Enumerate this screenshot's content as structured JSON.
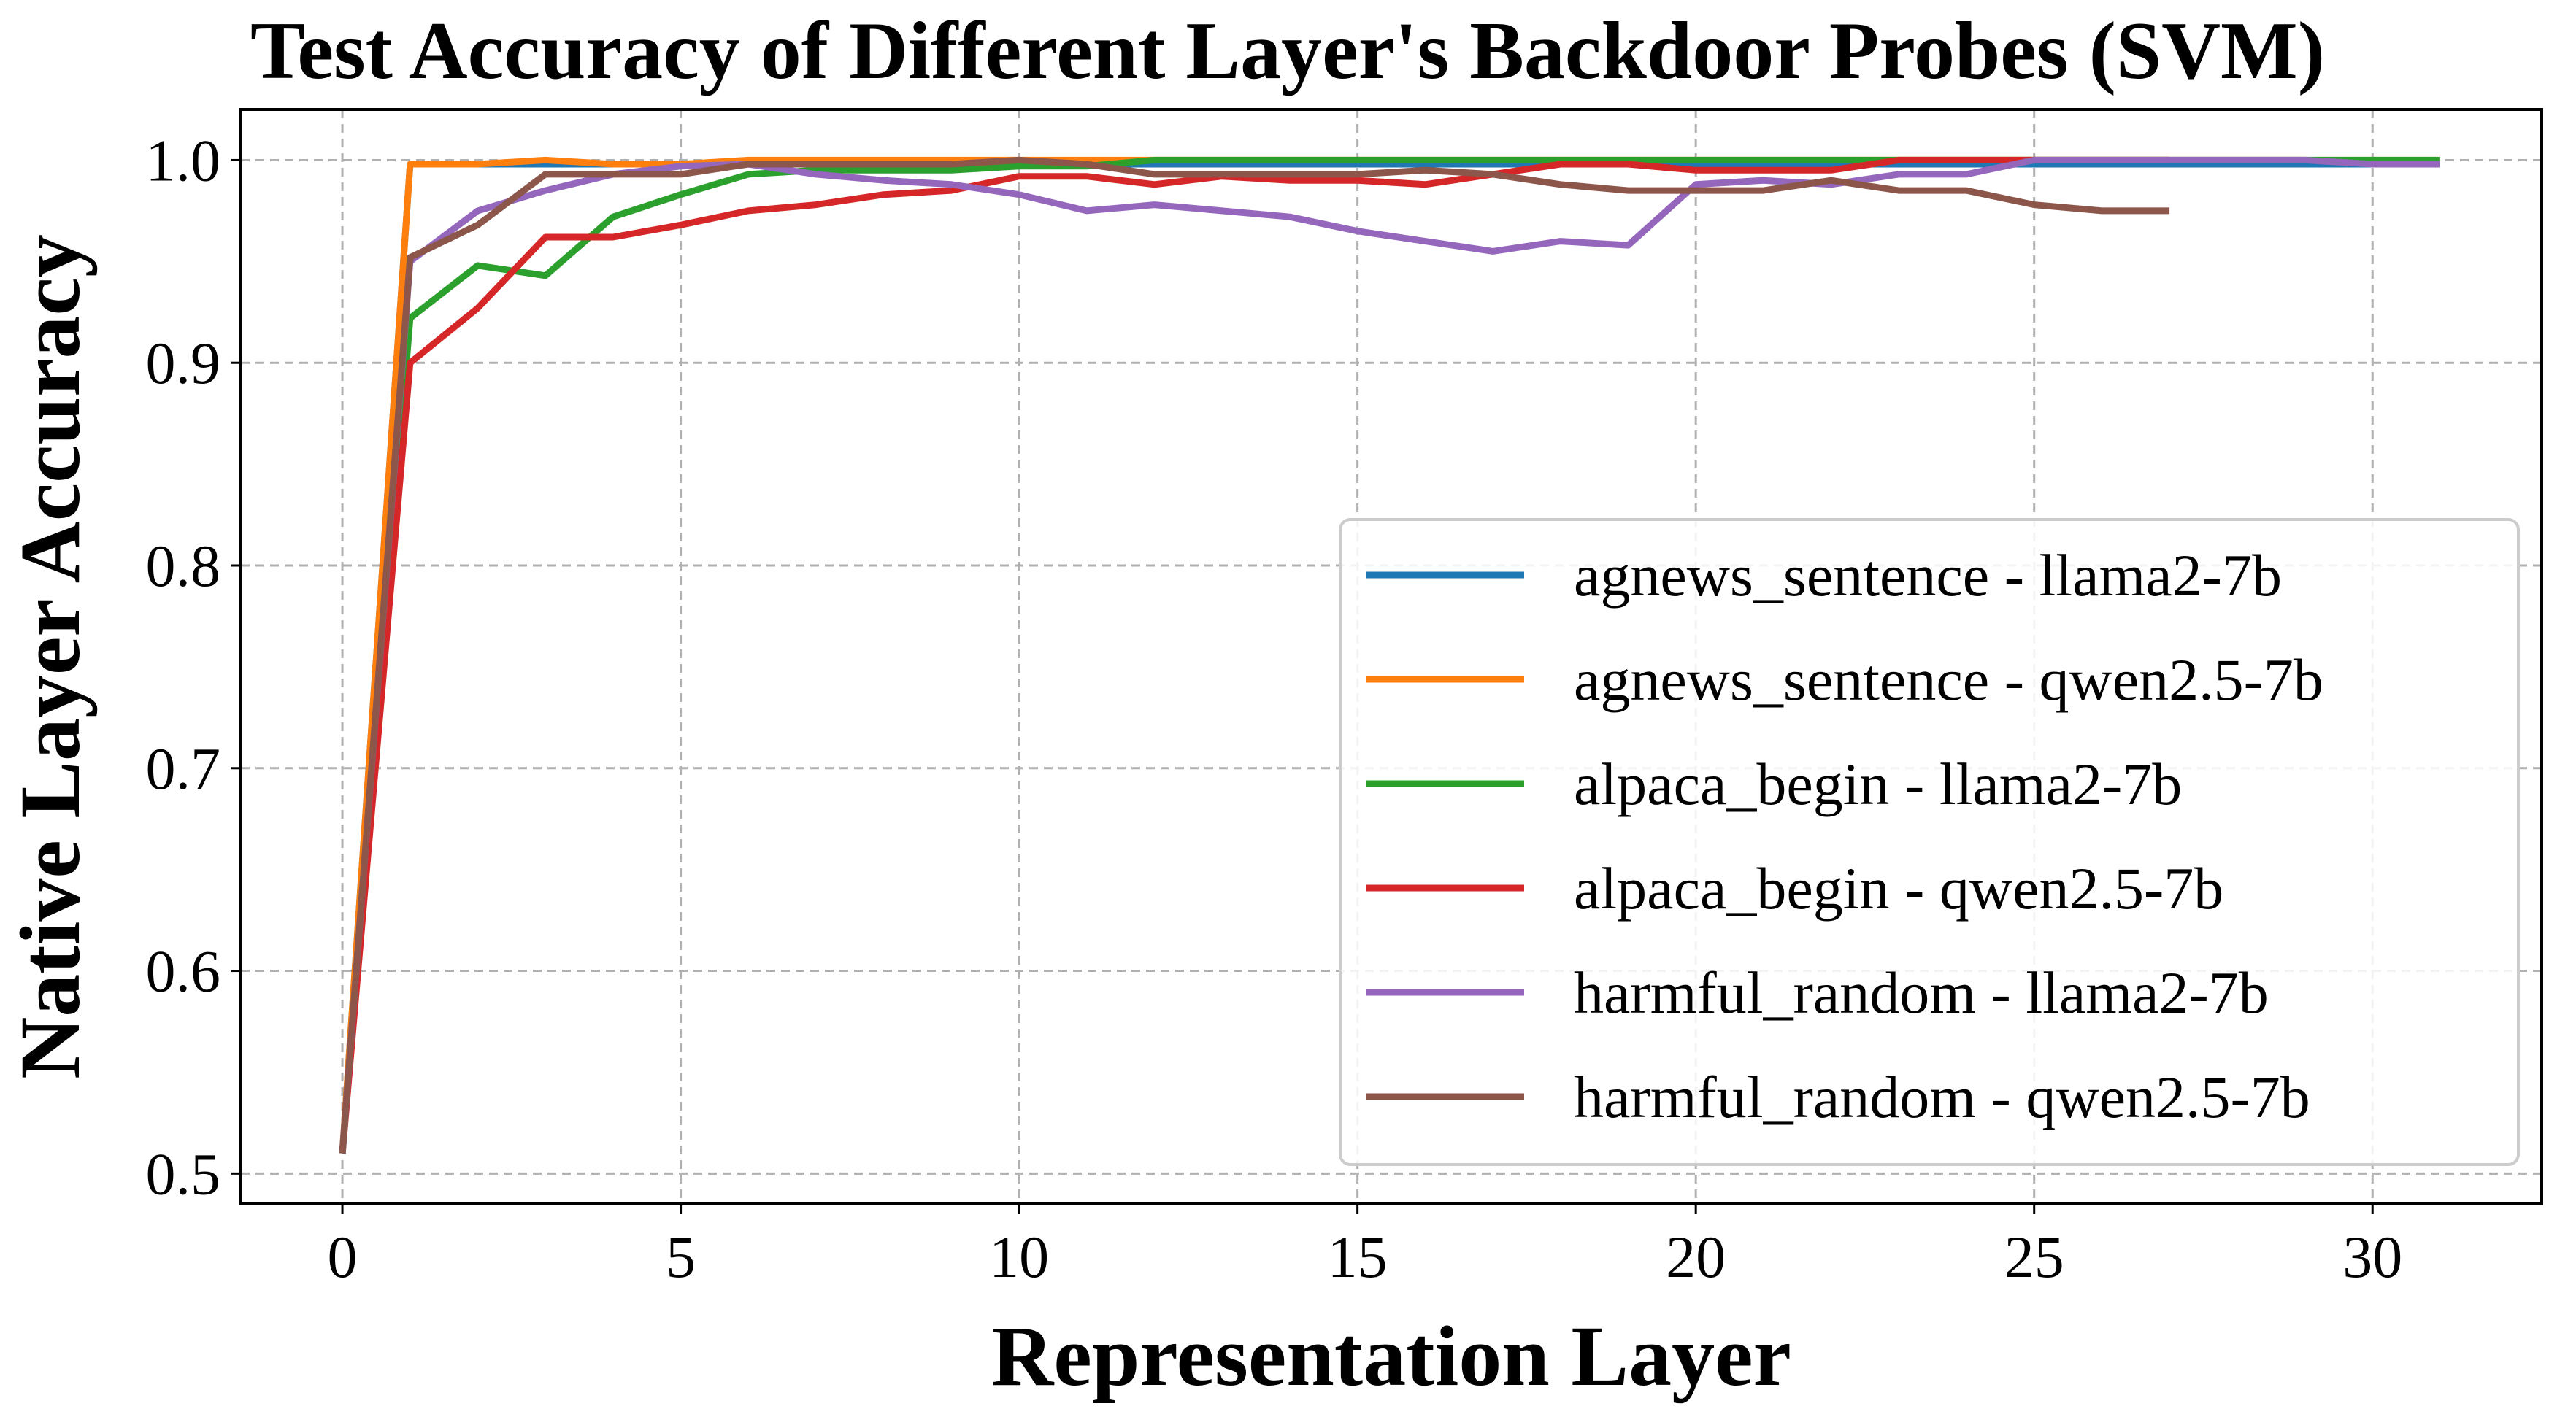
{
  "chart_data": {
    "type": "line",
    "title": "Test Accuracy of Different Layer's Backdoor Probes (SVM)",
    "xlabel": "Representation Layer",
    "ylabel": "Native Layer Accuracy",
    "xlim": [
      -1.5,
      32.5
    ],
    "ylim": [
      0.485,
      1.025
    ],
    "xticks": [
      0,
      5,
      10,
      15,
      20,
      25,
      30
    ],
    "yticks": [
      0.5,
      0.6,
      0.7,
      0.8,
      0.9,
      1.0
    ],
    "xtick_labels": [
      "0",
      "5",
      "10",
      "15",
      "20",
      "25",
      "30"
    ],
    "ytick_labels": [
      "0.5",
      "0.6",
      "0.7",
      "0.8",
      "0.9",
      "1.0"
    ],
    "grid": true,
    "legend_position": "lower-right",
    "series": [
      {
        "name": "agnews_sentence - llama2-7b",
        "color": "#1f77b4",
        "x": [
          0,
          1,
          2,
          3,
          4,
          5,
          6,
          7,
          8,
          9,
          10,
          11,
          12,
          13,
          14,
          15,
          16,
          17,
          18,
          19,
          20,
          21,
          22,
          23,
          24,
          25,
          26,
          27,
          28,
          29,
          30,
          31
        ],
        "values": [
          0.51,
          0.998,
          0.998,
          0.998,
          0.998,
          0.998,
          0.998,
          0.998,
          0.998,
          0.998,
          0.998,
          0.998,
          0.998,
          0.998,
          0.998,
          0.998,
          0.998,
          0.998,
          0.998,
          0.998,
          0.998,
          0.998,
          0.998,
          0.998,
          0.998,
          0.998,
          0.998,
          0.998,
          0.998,
          0.998,
          0.998,
          0.998
        ]
      },
      {
        "name": "agnews_sentence - qwen2.5-7b",
        "color": "#ff7f0e",
        "x": [
          0,
          1,
          2,
          3,
          4,
          5,
          6,
          7,
          8,
          9,
          10,
          11,
          12,
          13,
          14,
          15,
          16,
          17,
          18,
          19,
          20,
          21,
          22,
          23,
          24,
          25,
          26,
          27
        ],
        "values": [
          0.51,
          0.998,
          0.998,
          1.0,
          0.998,
          0.998,
          1.0,
          1.0,
          1.0,
          1.0,
          1.0,
          1.0,
          1.0,
          1.0,
          1.0,
          1.0,
          1.0,
          1.0,
          1.0,
          1.0,
          1.0,
          1.0,
          1.0,
          1.0,
          1.0,
          1.0,
          1.0,
          1.0
        ]
      },
      {
        "name": "alpaca_begin - llama2-7b",
        "color": "#2ca02c",
        "x": [
          0,
          1,
          2,
          3,
          4,
          5,
          6,
          7,
          8,
          9,
          10,
          11,
          12,
          13,
          14,
          15,
          16,
          17,
          18,
          19,
          20,
          21,
          22,
          23,
          24,
          25,
          26,
          27,
          28,
          29,
          30,
          31
        ],
        "values": [
          0.51,
          0.922,
          0.948,
          0.943,
          0.972,
          0.983,
          0.993,
          0.995,
          0.995,
          0.995,
          0.997,
          0.997,
          1.0,
          1.0,
          1.0,
          1.0,
          1.0,
          1.0,
          1.0,
          1.0,
          1.0,
          1.0,
          1.0,
          1.0,
          1.0,
          1.0,
          1.0,
          1.0,
          1.0,
          1.0,
          1.0,
          1.0
        ]
      },
      {
        "name": "alpaca_begin - qwen2.5-7b",
        "color": "#d62728",
        "x": [
          0,
          1,
          2,
          3,
          4,
          5,
          6,
          7,
          8,
          9,
          10,
          11,
          12,
          13,
          14,
          15,
          16,
          17,
          18,
          19,
          20,
          21,
          22,
          23,
          24,
          25,
          26,
          27
        ],
        "values": [
          0.51,
          0.9,
          0.927,
          0.962,
          0.962,
          0.968,
          0.975,
          0.978,
          0.983,
          0.985,
          0.992,
          0.992,
          0.988,
          0.992,
          0.99,
          0.99,
          0.988,
          0.993,
          0.998,
          0.998,
          0.995,
          0.995,
          0.995,
          1.0,
          1.0,
          1.0,
          1.0,
          1.0
        ]
      },
      {
        "name": "harmful_random - llama2-7b",
        "color": "#9467bd",
        "x": [
          0,
          1,
          2,
          3,
          4,
          5,
          6,
          7,
          8,
          9,
          10,
          11,
          12,
          13,
          14,
          15,
          16,
          17,
          18,
          19,
          20,
          21,
          22,
          23,
          24,
          25,
          26,
          27,
          28,
          29,
          30,
          31
        ],
        "values": [
          0.51,
          0.95,
          0.975,
          0.985,
          0.993,
          0.997,
          0.998,
          0.993,
          0.99,
          0.988,
          0.983,
          0.975,
          0.978,
          0.975,
          0.972,
          0.965,
          0.96,
          0.955,
          0.96,
          0.958,
          0.988,
          0.99,
          0.988,
          0.993,
          0.993,
          1.0,
          1.0,
          1.0,
          1.0,
          1.0,
          0.998,
          0.998
        ]
      },
      {
        "name": "harmful_random - qwen2.5-7b",
        "color": "#8c564b",
        "x": [
          0,
          1,
          2,
          3,
          4,
          5,
          6,
          7,
          8,
          9,
          10,
          11,
          12,
          13,
          14,
          15,
          16,
          17,
          18,
          19,
          20,
          21,
          22,
          23,
          24,
          25,
          26,
          27
        ],
        "values": [
          0.51,
          0.952,
          0.968,
          0.993,
          0.993,
          0.993,
          0.998,
          0.998,
          0.998,
          0.998,
          1.0,
          0.998,
          0.993,
          0.993,
          0.993,
          0.993,
          0.995,
          0.993,
          0.988,
          0.985,
          0.985,
          0.985,
          0.99,
          0.985,
          0.985,
          0.978,
          0.975,
          0.975
        ]
      }
    ]
  }
}
